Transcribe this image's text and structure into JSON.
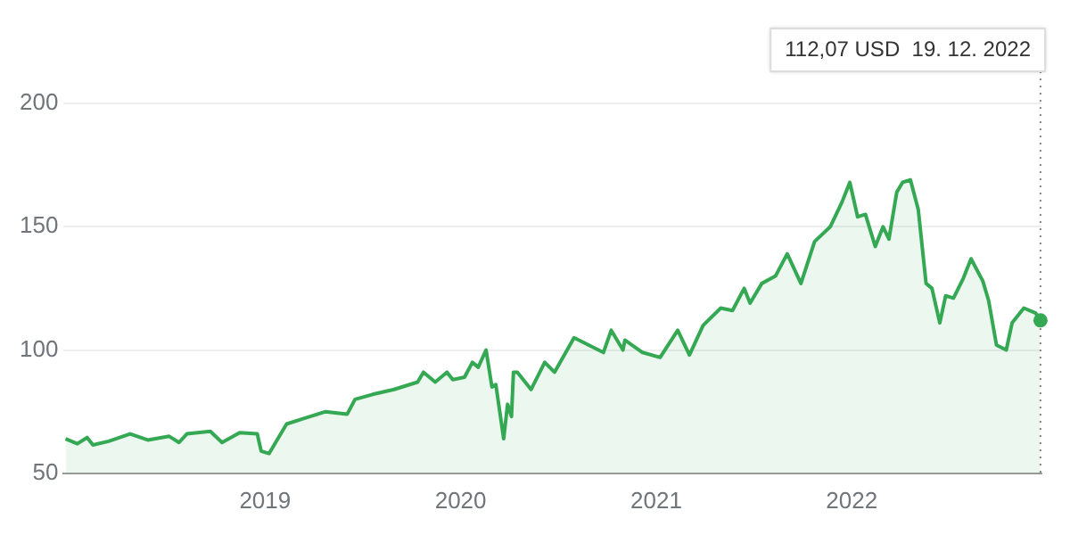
{
  "chart_data": {
    "type": "area",
    "x": [
      2017.98,
      2018.04,
      2018.09,
      2018.12,
      2018.2,
      2018.31,
      2018.4,
      2018.51,
      2018.56,
      2018.6,
      2018.72,
      2018.78,
      2018.87,
      2018.96,
      2018.98,
      2019.02,
      2019.11,
      2019.19,
      2019.31,
      2019.42,
      2019.46,
      2019.55,
      2019.66,
      2019.78,
      2019.81,
      2019.87,
      2019.93,
      2019.96,
      2020.02,
      2020.06,
      2020.09,
      2020.13,
      2020.16,
      2020.18,
      2020.22,
      2020.24,
      2020.26,
      2020.27,
      2020.29,
      2020.36,
      2020.43,
      2020.48,
      2020.58,
      2020.73,
      2020.77,
      2020.83,
      2020.84,
      2020.93,
      2021.02,
      2021.11,
      2021.17,
      2021.24,
      2021.33,
      2021.39,
      2021.45,
      2021.48,
      2021.54,
      2021.61,
      2021.67,
      2021.74,
      2021.81,
      2021.89,
      2021.95,
      2021.99,
      2022.03,
      2022.07,
      2022.12,
      2022.16,
      2022.19,
      2022.23,
      2022.26,
      2022.3,
      2022.34,
      2022.38,
      2022.41,
      2022.45,
      2022.48,
      2022.52,
      2022.57,
      2022.61,
      2022.67,
      2022.7,
      2022.74,
      2022.79,
      2022.82,
      2022.88,
      2022.94,
      2022.965
    ],
    "series": [
      {
        "color": "#34a853",
        "values": [
          64,
          62,
          64.5,
          61.5,
          63,
          66,
          63.5,
          65,
          62.5,
          66,
          67,
          62.5,
          66.5,
          66,
          59,
          58,
          70,
          72,
          75,
          74,
          80,
          82,
          84,
          87,
          91,
          87,
          91,
          88,
          89,
          95,
          93,
          100,
          85,
          86,
          64,
          78,
          73,
          91,
          91,
          84,
          95,
          91,
          105,
          99,
          108,
          100,
          104,
          99,
          97,
          108,
          98,
          110,
          117,
          116,
          125,
          119,
          127,
          130,
          139,
          127,
          144,
          150,
          160,
          168,
          154,
          155,
          142,
          150,
          145,
          164,
          168,
          169,
          157,
          127,
          125,
          111,
          122,
          121,
          129,
          137,
          128,
          120,
          102,
          100,
          111,
          117,
          115,
          112
        ]
      }
    ],
    "xlim": [
      2017.97,
      2022.97
    ],
    "xticks": [
      2019,
      2020,
      2021,
      2022
    ],
    "ylim": [
      50,
      200
    ],
    "yticks": [
      50,
      100,
      150,
      200
    ],
    "grid": "y",
    "ref_lines": [
      {
        "axis": "x",
        "value": 2022.965,
        "line_style": "dotted",
        "color": "#888888"
      }
    ],
    "annotations": [
      "112,07 USD  19. 12. 2022"
    ]
  }
}
